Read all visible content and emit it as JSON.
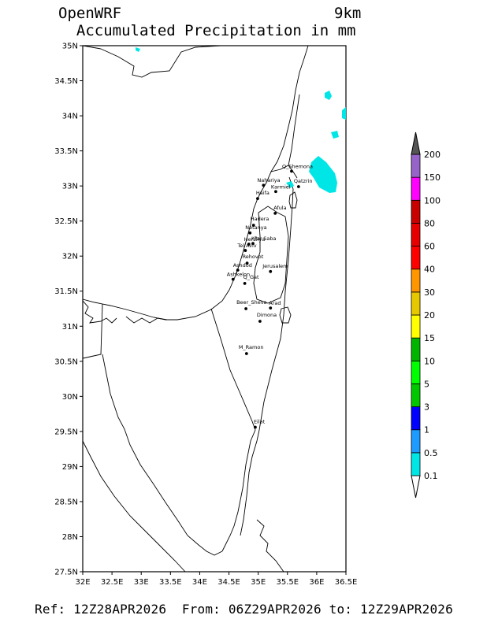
{
  "header": {
    "model": "OpenWRF",
    "resolution": "9km",
    "subtitle": "Accumulated Precipitation in mm"
  },
  "footer": {
    "text": "Ref: 12Z28APR2026  From: 06Z29APR2026 to: 12Z29APR2026"
  },
  "map": {
    "lat_ticks": [
      "35N",
      "34.5N",
      "34N",
      "33.5N",
      "33N",
      "32.5N",
      "32N",
      "31.5N",
      "31N",
      "30.5N",
      "30N",
      "29.5N",
      "29N",
      "28.5N",
      "28N",
      "27.5N"
    ],
    "lon_ticks": [
      "32E",
      "32.5E",
      "33E",
      "33.5E",
      "34E",
      "34.5E",
      "35E",
      "35.5E",
      "36E",
      "36.5E"
    ],
    "lon_range": [
      32,
      36.5
    ],
    "lat_range": [
      27.5,
      35
    ],
    "cities": [
      {
        "name": "Q_Shemona",
        "lon": 35.57,
        "lat": 33.21
      },
      {
        "name": "Nahariya",
        "lon": 35.09,
        "lat": 33.01
      },
      {
        "name": "Karmiel",
        "lon": 35.3,
        "lat": 32.92
      },
      {
        "name": "Qatzrin",
        "lon": 35.69,
        "lat": 32.99
      },
      {
        "name": "Haifa",
        "lon": 34.99,
        "lat": 32.82
      },
      {
        "name": "Afula",
        "lon": 35.29,
        "lat": 32.61
      },
      {
        "name": "Hadera",
        "lon": 34.92,
        "lat": 32.44
      },
      {
        "name": "Netanya",
        "lon": 34.86,
        "lat": 32.33
      },
      {
        "name": "Herzliya",
        "lon": 34.84,
        "lat": 32.17
      },
      {
        "name": "Kfar Saba",
        "lon": 34.91,
        "lat": 32.18
      },
      {
        "name": "Tel Aviv",
        "lon": 34.78,
        "lat": 32.08
      },
      {
        "name": "Rehovot",
        "lon": 34.81,
        "lat": 31.9
      },
      {
        "name": "Ashdod",
        "lon": 34.65,
        "lat": 31.8
      },
      {
        "name": "Ashkelon",
        "lon": 34.57,
        "lat": 31.67
      },
      {
        "name": "Jerusalem",
        "lon": 35.21,
        "lat": 31.78
      },
      {
        "name": "Q_Gat",
        "lon": 34.77,
        "lat": 31.61
      },
      {
        "name": "Beer_Sheva",
        "lon": 34.79,
        "lat": 31.25
      },
      {
        "name": "Arad",
        "lon": 35.21,
        "lat": 31.26
      },
      {
        "name": "Dimona",
        "lon": 35.03,
        "lat": 31.07
      },
      {
        "name": "M_Ramon",
        "lon": 34.8,
        "lat": 30.61
      },
      {
        "name": "Eilat",
        "lon": 34.95,
        "lat": 29.56
      }
    ]
  },
  "legend": {
    "levels": [
      "0.1",
      "0.5",
      "1",
      "3",
      "5",
      "10",
      "15",
      "20",
      "30",
      "40",
      "60",
      "80",
      "100",
      "150",
      "200"
    ],
    "colors": [
      "#00e6e6",
      "#1e9bff",
      "#0000ff",
      "#00c800",
      "#00ff00",
      "#00b400",
      "#ffff00",
      "#e6c800",
      "#ff9600",
      "#ff0000",
      "#e60000",
      "#c80000",
      "#ff00ff",
      "#9664c8"
    ],
    "top_color": "#555555"
  },
  "precip_color": "#00e6e6"
}
